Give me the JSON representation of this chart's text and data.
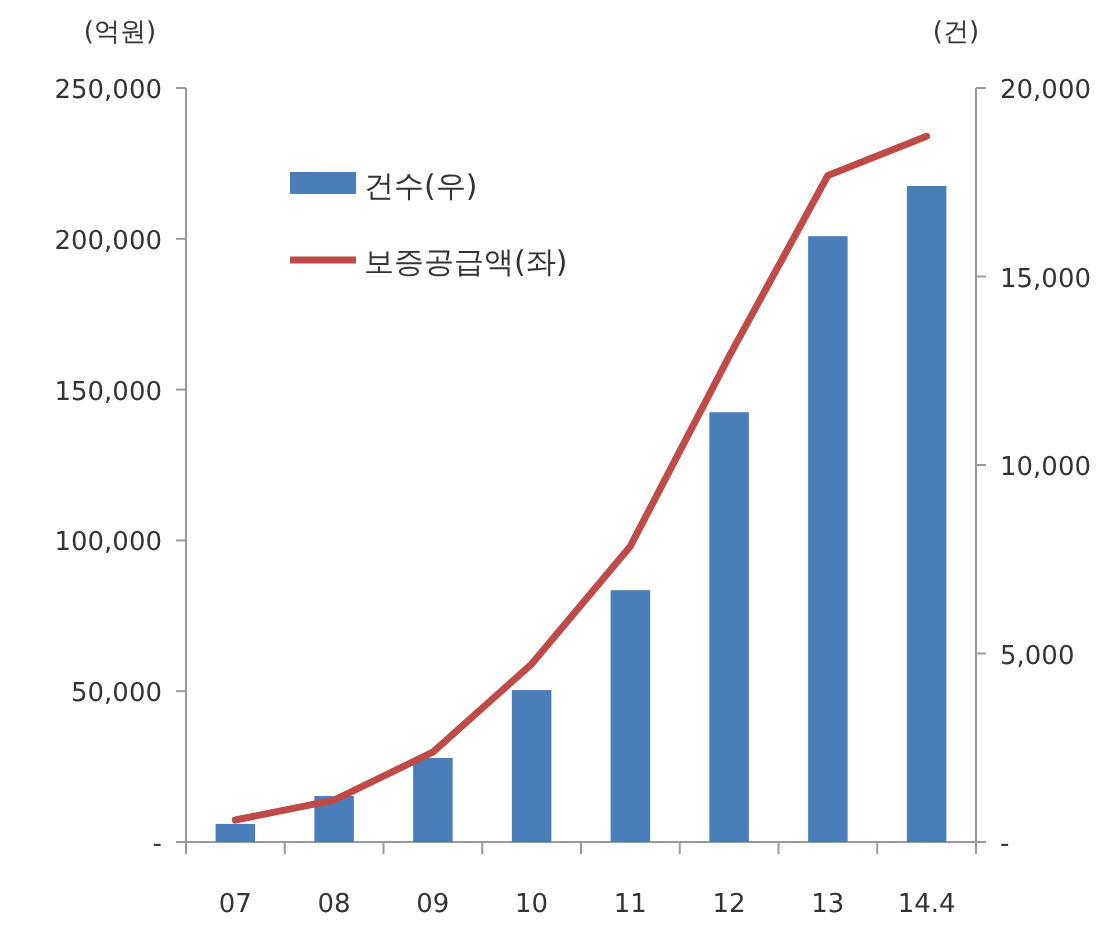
{
  "chart_data": {
    "type": "bar",
    "ylabel": "(억원)",
    "y2label": "(건)",
    "categories": [
      "07",
      "08",
      "09",
      "10",
      "11",
      "12",
      "13",
      "14.4"
    ],
    "series": [
      {
        "name": "건수(우)",
        "axis": "y2",
        "color": "#4a7ebb",
        "values": [
          480,
          1220,
          2230,
          4030,
          6680,
          11400,
          16070,
          17400
        ]
      },
      {
        "name": "보증공급액(좌)",
        "type": "line",
        "color": "#be4b48",
        "values": [
          7300,
          13900,
          29800,
          59000,
          98100,
          161000,
          221000,
          234000
        ]
      }
    ],
    "ylim": [
      0,
      250000
    ],
    "yticks": [
      {
        "value": 0,
        "label": "-"
      },
      {
        "value": 50000,
        "label": "50,000"
      },
      {
        "value": 100000,
        "label": "100,000"
      },
      {
        "value": 150000,
        "label": "150,000"
      },
      {
        "value": 200000,
        "label": "200,000"
      },
      {
        "value": 250000,
        "label": "250,000"
      }
    ],
    "y2lim": [
      0,
      20000
    ],
    "y2ticks": [
      {
        "value": 0,
        "label": "-"
      },
      {
        "value": 5000,
        "label": "5,000"
      },
      {
        "value": 10000,
        "label": "10,000"
      },
      {
        "value": 15000,
        "label": "15,000"
      },
      {
        "value": 20000,
        "label": "20,000"
      }
    ],
    "legend": "top left"
  }
}
